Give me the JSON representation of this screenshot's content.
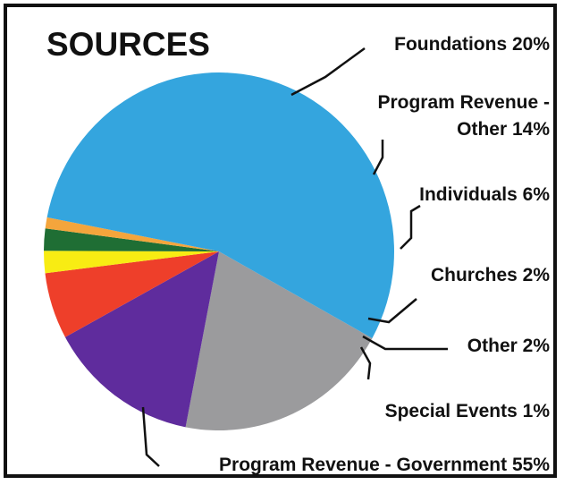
{
  "chart_data": {
    "type": "pie",
    "title": "SOURCES",
    "slices": [
      {
        "label": "Foundations 20%",
        "value": 20,
        "color": "#9b9b9d",
        "label_lines": [
          "Foundations 20%"
        ]
      },
      {
        "label": "Program Revenue - Other 14%",
        "value": 14,
        "color": "#5f2c9d",
        "label_lines": [
          "Program Revenue -",
          "Other 14%"
        ]
      },
      {
        "label": "Individuals 6%",
        "value": 6,
        "color": "#ee3f2a",
        "label_lines": [
          "Individuals 6%"
        ]
      },
      {
        "label": "Churches 2%",
        "value": 2,
        "color": "#f8ec13",
        "label_lines": [
          "Churches 2%"
        ]
      },
      {
        "label": "Other 2%",
        "value": 2,
        "color": "#1f6e34",
        "label_lines": [
          "Other 2%"
        ]
      },
      {
        "label": "Special Events 1%",
        "value": 1,
        "color": "#f4a53c",
        "label_lines": [
          "Special Events 1%"
        ]
      },
      {
        "label": "Program Revenue - Government 55%",
        "value": 55,
        "color": "#34a5de",
        "label_lines": [
          "Program Revenue - Government 55%"
        ]
      }
    ],
    "legend": "none"
  }
}
